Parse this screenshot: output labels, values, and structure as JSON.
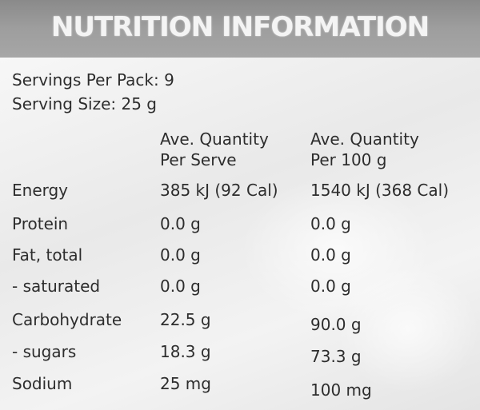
{
  "header": {
    "title": "NUTRITION INFORMATION"
  },
  "meta": {
    "servings": "Servings Per Pack: 9",
    "serving_size": "Serving Size: 25 g"
  },
  "columns": {
    "per_serve": [
      "Ave. Quantity",
      "Per Serve"
    ],
    "per_100g": [
      "Ave. Quantity",
      "Per 100 g"
    ]
  },
  "rows": [
    {
      "label": "Energy",
      "serve": "385 kJ (92 Cal)",
      "per100": "1540 kJ (368 Cal)"
    },
    {
      "label": "Protein",
      "serve": "0.0 g",
      "per100": "0.0 g"
    },
    {
      "label": "Fat, total",
      "serve": "0.0 g",
      "per100": "0.0 g"
    },
    {
      "label": "- saturated",
      "serve": "0.0 g",
      "per100": "0.0 g"
    },
    {
      "label": "Carbohydrate",
      "serve": "22.5 g",
      "per100": "90.0 g"
    },
    {
      "label": "- sugars",
      "serve": "18.3 g",
      "per100": "73.3 g"
    },
    {
      "label": "Sodium",
      "serve": "25 mg",
      "per100": "100 mg"
    }
  ]
}
